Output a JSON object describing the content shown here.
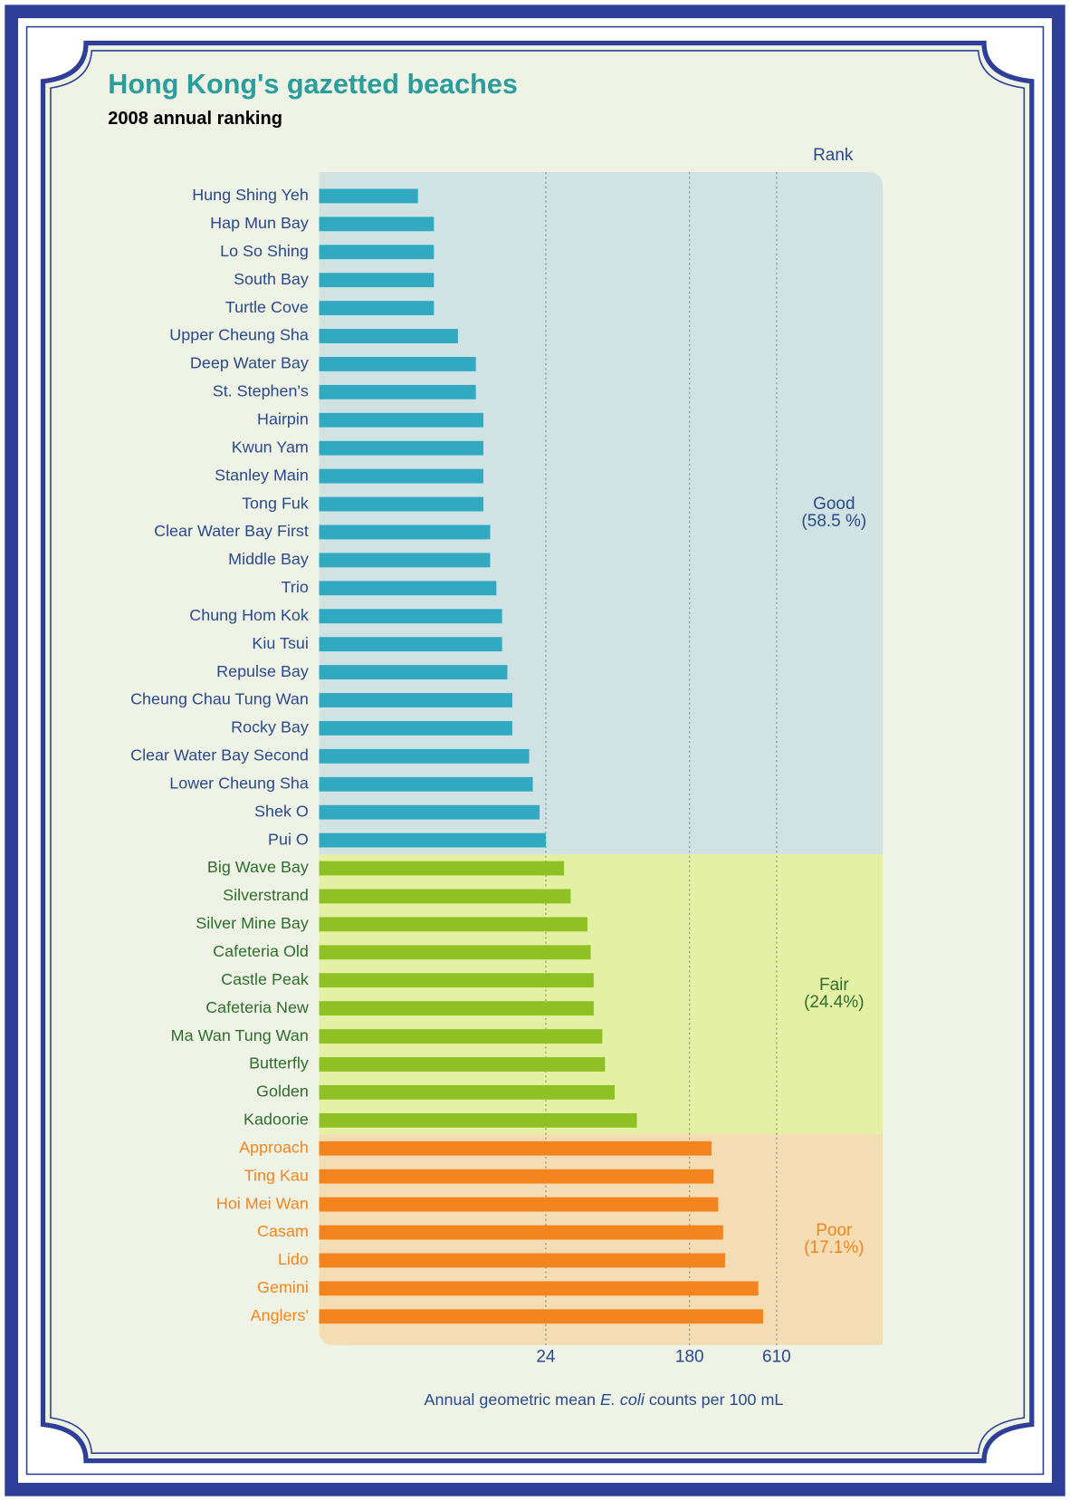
{
  "chart_data": {
    "type": "bar",
    "orientation": "horizontal",
    "title": "Hong Kong's gazetted beaches",
    "subtitle": "2008 annual ranking",
    "rank_label": "Rank",
    "xlabel_parts": [
      "Annual geometric mean ",
      "E. coli",
      " counts per 100 mL"
    ],
    "xscale": "log",
    "xlim": [
      1,
      2700
    ],
    "xticks": [
      24,
      180,
      610
    ],
    "grid": true,
    "series": [
      {
        "name": "Good",
        "share_label": "(58.5 %)",
        "color": "#31a9c1",
        "band_color": "#d0e3e2",
        "label_color": "#2a4a8c",
        "categories": [
          "Hung Shing Yeh",
          "Hap Mun Bay",
          "Lo So Shing",
          "South Bay",
          "Turtle Cove",
          "Upper Cheung Sha",
          "Deep Water Bay",
          "St. Stephen's",
          "Hairpin",
          "Kwun Yam",
          "Stanley Main",
          "Tong Fuk",
          "Clear Water Bay First",
          "Middle Bay",
          "Trio",
          "Chung Hom Kok",
          "Kiu Tsui",
          "Repulse Bay",
          "Cheung Chau Tung Wan",
          "Rocky Bay",
          "Clear Water Bay Second",
          "Lower Cheung Sha",
          "Shek O",
          "Pui O"
        ],
        "values": [
          4,
          5,
          5,
          5,
          5,
          7,
          9,
          9,
          10,
          10,
          10,
          10,
          11,
          11,
          12,
          13,
          13,
          14,
          15,
          15,
          19,
          20,
          22,
          24
        ]
      },
      {
        "name": "Fair",
        "share_label": "(24.4%)",
        "color": "#8fc125",
        "band_color": "#e4f0a4",
        "label_color": "#2e6e2e",
        "categories": [
          "Big Wave Bay",
          "Silverstrand",
          "Silver Mine Bay",
          "Cafeteria Old",
          "Castle Peak",
          "Cafeteria New",
          "Ma Wan Tung Wan",
          "Butterfly",
          "Golden",
          "Kadoorie"
        ],
        "values": [
          31,
          34,
          43,
          45,
          47,
          47,
          53,
          55,
          63,
          86
        ]
      },
      {
        "name": "Poor",
        "share_label": "(17.1%)",
        "color": "#f4841e",
        "band_color": "#f4ddb4",
        "label_color": "#f4841e",
        "categories": [
          "Approach",
          "Ting Kau",
          "Hoi Mei Wan",
          "Casam",
          "Lido",
          "Gemini",
          "Anglers'"
        ],
        "values": [
          245,
          252,
          269,
          288,
          296,
          472,
          505
        ]
      }
    ]
  }
}
